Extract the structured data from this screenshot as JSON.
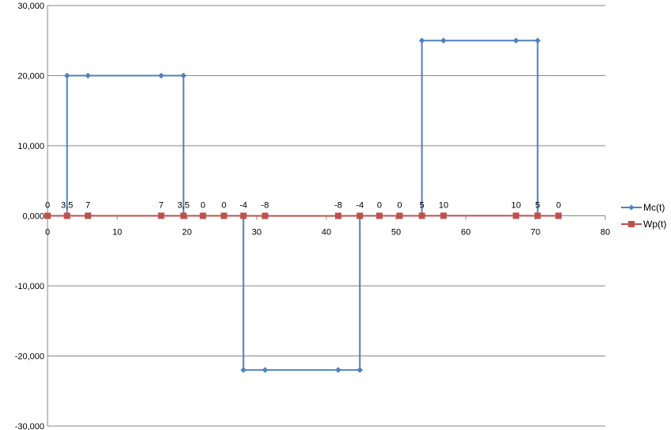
{
  "chart_data": {
    "type": "scatter",
    "title": "",
    "xlabel": "",
    "ylabel": "",
    "xlim": [
      0,
      80
    ],
    "ylim": [
      -30000,
      30000
    ],
    "x_ticks": [
      0,
      10,
      20,
      30,
      40,
      50,
      60,
      70,
      80
    ],
    "x_tick_labels": [
      "0",
      "10",
      "20",
      "30",
      "40",
      "50",
      "60",
      "70",
      "80"
    ],
    "y_ticks": [
      30000,
      20000,
      10000,
      0,
      -10000,
      -20000,
      -30000
    ],
    "y_tick_labels": [
      "30,000",
      "20,000",
      "10,000",
      "0,000",
      "-10,000",
      "-20,000",
      "-30,000"
    ],
    "grid": "horizontal",
    "legend_position": "right",
    "series": [
      {
        "name": "Mc(t)",
        "color": "#4F81BD",
        "marker": "diamond",
        "x": [
          0,
          2.8,
          2.8,
          5.8,
          16.3,
          19.5,
          19.5,
          22.3,
          25.3,
          28.1,
          28.1,
          31.2,
          41.7,
          44.8,
          44.8,
          47.6,
          50.5,
          53.7,
          53.7,
          56.8,
          67.2,
          70.3,
          70.3,
          73.3
        ],
        "y": [
          0,
          0,
          20000,
          20000,
          20000,
          20000,
          0,
          0,
          0,
          0,
          -22000,
          -22000,
          -22000,
          -22000,
          0,
          0,
          0,
          0,
          25000,
          25000,
          25000,
          25000,
          0,
          0
        ]
      },
      {
        "name": "Wp(t)",
        "color": "#C0504D",
        "marker": "square",
        "x": [
          0,
          2.8,
          5.8,
          16.3,
          19.5,
          22.3,
          25.3,
          28.1,
          31.2,
          41.7,
          44.8,
          47.6,
          50.5,
          53.7,
          56.8,
          67.2,
          70.3,
          73.3
        ],
        "y": [
          0,
          3.5,
          7,
          7,
          3.5,
          0,
          0,
          -4,
          -8,
          -8,
          -4,
          0,
          0,
          5,
          10,
          10,
          5,
          0
        ],
        "labels": [
          "0",
          "3,5",
          "7",
          "7",
          "3,5",
          "0",
          "0",
          "-4",
          "-8",
          "-8",
          "-4",
          "0",
          "0",
          "5",
          "10",
          "10",
          "5",
          "0"
        ]
      }
    ]
  }
}
